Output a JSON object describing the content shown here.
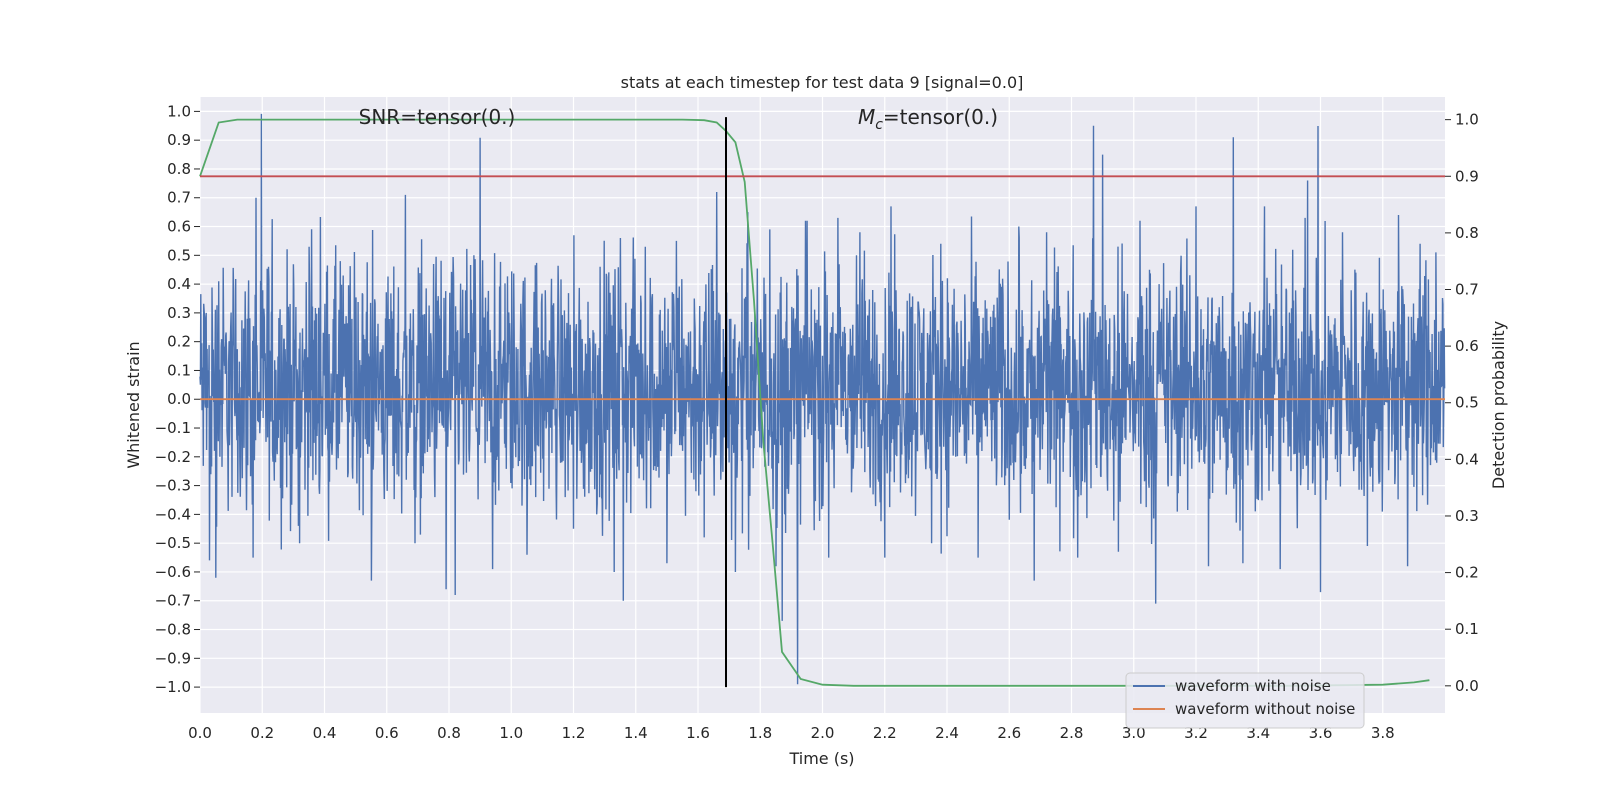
{
  "chart_data": {
    "type": "line",
    "title": "stats at each timestep for test data 9 [signal=0.0]",
    "xlabel": "Time (s)",
    "ylabel_left": "Whitened strain",
    "ylabel_right": "Detection probability",
    "xlim": [
      0.0,
      4.0
    ],
    "ylim_left": [
      -1.09,
      1.05
    ],
    "ylim_right": [
      -0.048,
      1.04
    ],
    "x_ticks": [
      0.0,
      0.2,
      0.4,
      0.6,
      0.8,
      1.0,
      1.2,
      1.4,
      1.6,
      1.8,
      2.0,
      2.2,
      2.4,
      2.6,
      2.8,
      3.0,
      3.2,
      3.4,
      3.6,
      3.8
    ],
    "x_tick_labels": [
      "0.0",
      "0.2",
      "0.4",
      "0.6",
      "0.8",
      "1.0",
      "1.2",
      "1.4",
      "1.6",
      "1.8",
      "2.0",
      "2.2",
      "2.4",
      "2.6",
      "2.8",
      "3.0",
      "3.2",
      "3.4",
      "3.6",
      "3.8"
    ],
    "y_ticks_left": [
      1.0,
      0.9,
      0.8,
      0.7,
      0.6,
      0.5,
      0.4,
      0.3,
      0.2,
      0.1,
      0.0,
      -0.1,
      -0.2,
      -0.3,
      -0.4,
      -0.5,
      -0.6,
      -0.7,
      -0.8,
      -0.9,
      -1.0
    ],
    "y_tick_labels_left": [
      "1.0",
      "0.9",
      "0.8",
      "0.7",
      "0.6",
      "0.5",
      "0.4",
      "0.3",
      "0.2",
      "0.1",
      "0.0",
      "−0.1",
      "−0.2",
      "−0.3",
      "−0.4",
      "−0.5",
      "−0.6",
      "−0.7",
      "−0.8",
      "−0.9",
      "−1.0"
    ],
    "y_ticks_right": [
      1.0,
      0.9,
      0.8,
      0.7,
      0.6,
      0.5,
      0.4,
      0.3,
      0.2,
      0.1,
      0.0
    ],
    "y_tick_labels_right": [
      "1.0",
      "0.9",
      "0.8",
      "0.7",
      "0.6",
      "0.5",
      "0.4",
      "0.3",
      "0.2",
      "0.1",
      "0.0"
    ],
    "grid": true,
    "legend_position": "bottom-right",
    "annotations": [
      {
        "text": "SNR=tensor(0.)",
        "x": 0.76,
        "y": 0.99
      },
      {
        "text_math": "M",
        "text_sub": "c",
        "text_rest": "=tensor(0.)",
        "x": 2.33,
        "y": 0.99
      }
    ],
    "series": [
      {
        "name": "waveform with noise",
        "axis": "left",
        "color": "#4c72b0",
        "kind": "noise",
        "typical_amplitude": [
          -0.3,
          0.4
        ],
        "peaks": [
          [
            0.02,
            0.3
          ],
          [
            0.06,
            0.41
          ],
          [
            0.18,
            0.7
          ],
          [
            0.22,
            0.46
          ],
          [
            0.35,
            0.53
          ],
          [
            0.45,
            0.48
          ],
          [
            0.55,
            0.59
          ],
          [
            0.66,
            0.71
          ],
          [
            0.75,
            0.47
          ],
          [
            0.88,
            0.5
          ],
          [
            1.05,
            0.55
          ],
          [
            1.2,
            0.48
          ],
          [
            1.35,
            0.56
          ],
          [
            1.43,
            0.53
          ],
          [
            1.53,
            0.55
          ],
          [
            1.62,
            0.62
          ],
          [
            1.66,
            0.72
          ],
          [
            1.76,
            0.65
          ],
          [
            1.83,
            0.59
          ],
          [
            1.95,
            0.62
          ],
          [
            2.05,
            0.63
          ],
          [
            2.12,
            0.58
          ],
          [
            2.22,
            0.67
          ],
          [
            2.38,
            0.54
          ],
          [
            2.5,
            0.55
          ],
          [
            2.63,
            0.6
          ],
          [
            2.72,
            0.58
          ],
          [
            2.82,
            0.66
          ],
          [
            2.87,
            0.95
          ],
          [
            2.9,
            0.85
          ],
          [
            3.02,
            0.62
          ],
          [
            3.2,
            0.67
          ],
          [
            3.32,
            0.91
          ],
          [
            3.42,
            0.67
          ],
          [
            3.55,
            0.63
          ],
          [
            3.67,
            0.58
          ],
          [
            3.75,
            0.67
          ],
          [
            3.85,
            0.64
          ],
          [
            3.92,
            0.54
          ],
          [
            3.97,
            0.51
          ]
        ],
        "troughs": [
          [
            0.03,
            -0.56
          ],
          [
            0.05,
            -0.62
          ],
          [
            0.17,
            -0.55
          ],
          [
            0.32,
            -0.5
          ],
          [
            0.55,
            -0.63
          ],
          [
            0.69,
            -0.5
          ],
          [
            0.79,
            -0.66
          ],
          [
            0.82,
            -0.68
          ],
          [
            0.94,
            -0.59
          ],
          [
            1.05,
            -0.54
          ],
          [
            1.2,
            -0.45
          ],
          [
            1.33,
            -0.6
          ],
          [
            1.36,
            -0.7
          ],
          [
            1.5,
            -0.57
          ],
          [
            1.62,
            -0.48
          ],
          [
            1.72,
            -0.6
          ],
          [
            1.85,
            -0.58
          ],
          [
            1.87,
            -0.77
          ],
          [
            1.92,
            -0.99
          ],
          [
            2.02,
            -0.55
          ],
          [
            2.2,
            -0.55
          ],
          [
            2.35,
            -0.5
          ],
          [
            2.5,
            -0.55
          ],
          [
            2.68,
            -0.63
          ],
          [
            2.82,
            -0.55
          ],
          [
            2.95,
            -0.53
          ],
          [
            3.07,
            -0.71
          ],
          [
            3.24,
            -0.58
          ],
          [
            3.35,
            -0.57
          ],
          [
            3.47,
            -0.59
          ],
          [
            3.6,
            -0.67
          ],
          [
            3.75,
            -0.51
          ],
          [
            3.88,
            -0.58
          ]
        ]
      },
      {
        "name": "waveform without noise",
        "axis": "left",
        "color": "#dd8452",
        "x": [
          0.0,
          4.0
        ],
        "y": [
          0.0,
          0.0
        ]
      },
      {
        "name": "detection probability",
        "axis": "right",
        "color": "#55a868",
        "x": [
          0.0,
          0.06,
          0.12,
          0.25,
          0.5,
          1.0,
          1.5,
          1.55,
          1.62,
          1.66,
          1.69,
          1.72,
          1.75,
          1.78,
          1.81,
          1.84,
          1.87,
          1.93,
          2.0,
          2.1,
          2.5,
          3.0,
          3.5,
          3.8,
          3.9,
          3.95
        ],
        "y": [
          0.9,
          0.995,
          1.0,
          1.0,
          1.0,
          1.0,
          1.0,
          1.0,
          0.999,
          0.995,
          0.98,
          0.96,
          0.89,
          0.68,
          0.43,
          0.25,
          0.06,
          0.012,
          0.002,
          0.0,
          0.0,
          0.0,
          0.0,
          0.002,
          0.006,
          0.01
        ]
      },
      {
        "name": "threshold",
        "axis": "right",
        "color": "#c44e52",
        "x": [
          0.0,
          4.0
        ],
        "y": [
          0.9,
          0.9
        ]
      },
      {
        "name": "marker",
        "axis": "left",
        "color": "#000000",
        "x": [
          1.69,
          1.69
        ],
        "y": [
          -1.0,
          0.98
        ]
      }
    ]
  },
  "legend": {
    "items": [
      {
        "label": "waveform with noise",
        "color": "#4c72b0"
      },
      {
        "label": "waveform without noise",
        "color": "#dd8452"
      }
    ]
  }
}
